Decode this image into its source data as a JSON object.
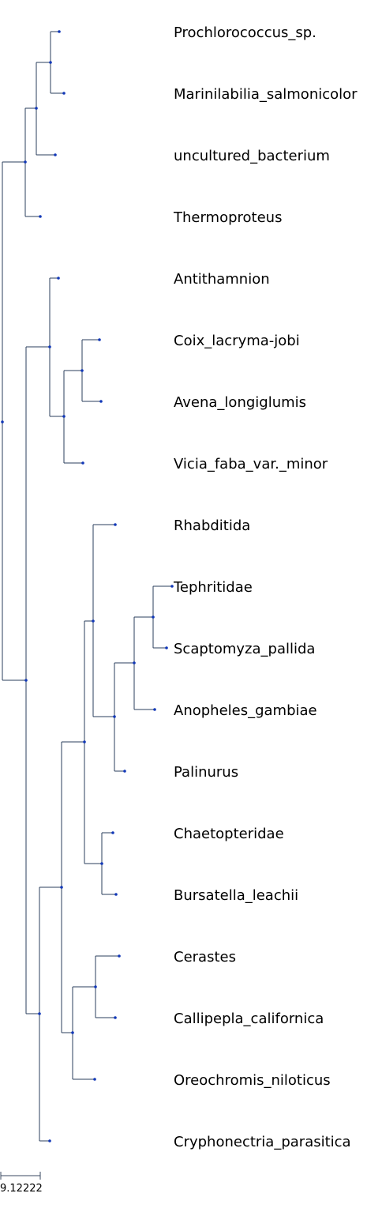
{
  "tree": {
    "leaves": [
      "Prochlorococcus_sp.",
      "Marinilabilia_salmonicolor",
      "uncultured_bacterium",
      "Thermoproteus",
      "Antithamnion",
      "Coix_lacryma-jobi",
      "Avena_longiglumis",
      "Vicia_faba_var._minor",
      "Rhabditida",
      "Tephritidae",
      "Scaptomyza_pallida",
      "Anopheles_gambiae",
      "Palinurus",
      "Chaetopteridae",
      "Bursatella_leachii",
      "Cerastes",
      "Callipepla_californica",
      "Oreochromis_niloticus",
      "Cryphonectria_parasitica"
    ]
  },
  "scale_bar": {
    "label": "9.12222",
    "length": 9.12222
  },
  "colors": {
    "branch": "#2b3f5c",
    "node": "#1238b8",
    "label": "#000000"
  }
}
